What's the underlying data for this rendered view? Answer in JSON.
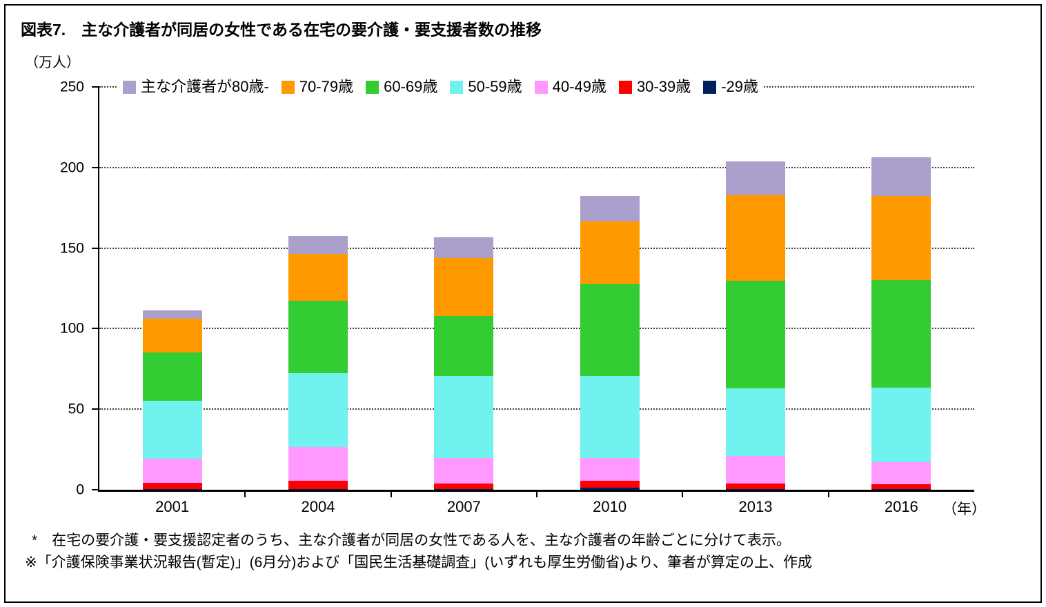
{
  "page": {
    "title": "図表7.　主な介護者が同居の女性である在宅の要介護・要支援者数の推移",
    "unit_label": "（万人）",
    "x_axis_suffix": "（年）",
    "footnotes": [
      "*　在宅の要介護・要支援認定者のうち、主な介護者が同居の女性である人を、主な介護者の年齢ごとに分けて表示。",
      "※「介護保険事業状況報告(暫定)」(6月分)および「国民生活基礎調査」(いずれも厚生労働省)より、筆者が算定の上、作成"
    ]
  },
  "chart_data": {
    "type": "bar",
    "stacked": true,
    "title": "図表7.　主な介護者が同居の女性である在宅の要介護・要支援者数の推移",
    "xlabel": "（年）",
    "ylabel": "（万人）",
    "ylim": [
      0,
      250
    ],
    "yticks": [
      0,
      50,
      100,
      150,
      200,
      250
    ],
    "grid": true,
    "legend_position": "top",
    "legend_order": "top-of-stack-first",
    "categories": [
      "2001",
      "2004",
      "2007",
      "2010",
      "2013",
      "2016"
    ],
    "series": [
      {
        "name": "-29歳",
        "legend": "-29歳",
        "color": "#002060",
        "values": [
          0.3,
          0.5,
          0.3,
          1.5,
          0.3,
          0.3
        ]
      },
      {
        "name": "30-39歳",
        "legend": "30-39歳",
        "color": "#FF0000",
        "values": [
          4,
          5,
          3.5,
          4,
          3.5,
          3
        ]
      },
      {
        "name": "40-49歳",
        "legend": "40-49歳",
        "color": "#FF99FF",
        "values": [
          15,
          21,
          16,
          14,
          17,
          14
        ]
      },
      {
        "name": "50-59歳",
        "legend": "50-59歳",
        "color": "#70F2EE",
        "values": [
          36,
          46,
          51,
          51,
          42,
          46
        ]
      },
      {
        "name": "60-69歳",
        "legend": "60-69歳",
        "color": "#33CC33",
        "values": [
          30,
          45,
          37,
          57,
          67,
          67
        ]
      },
      {
        "name": "70-79歳",
        "legend": "70-79歳",
        "color": "#FF9900",
        "values": [
          21,
          29,
          36,
          39,
          53,
          52
        ]
      },
      {
        "name": "80歳-",
        "legend": "主な介護者が80歳-",
        "color": "#ABA0CB",
        "values": [
          5,
          11,
          13,
          16,
          21,
          24
        ]
      }
    ],
    "totals": [
      111.3,
      157.5,
      156.8,
      182.5,
      203.8,
      206.3
    ]
  }
}
